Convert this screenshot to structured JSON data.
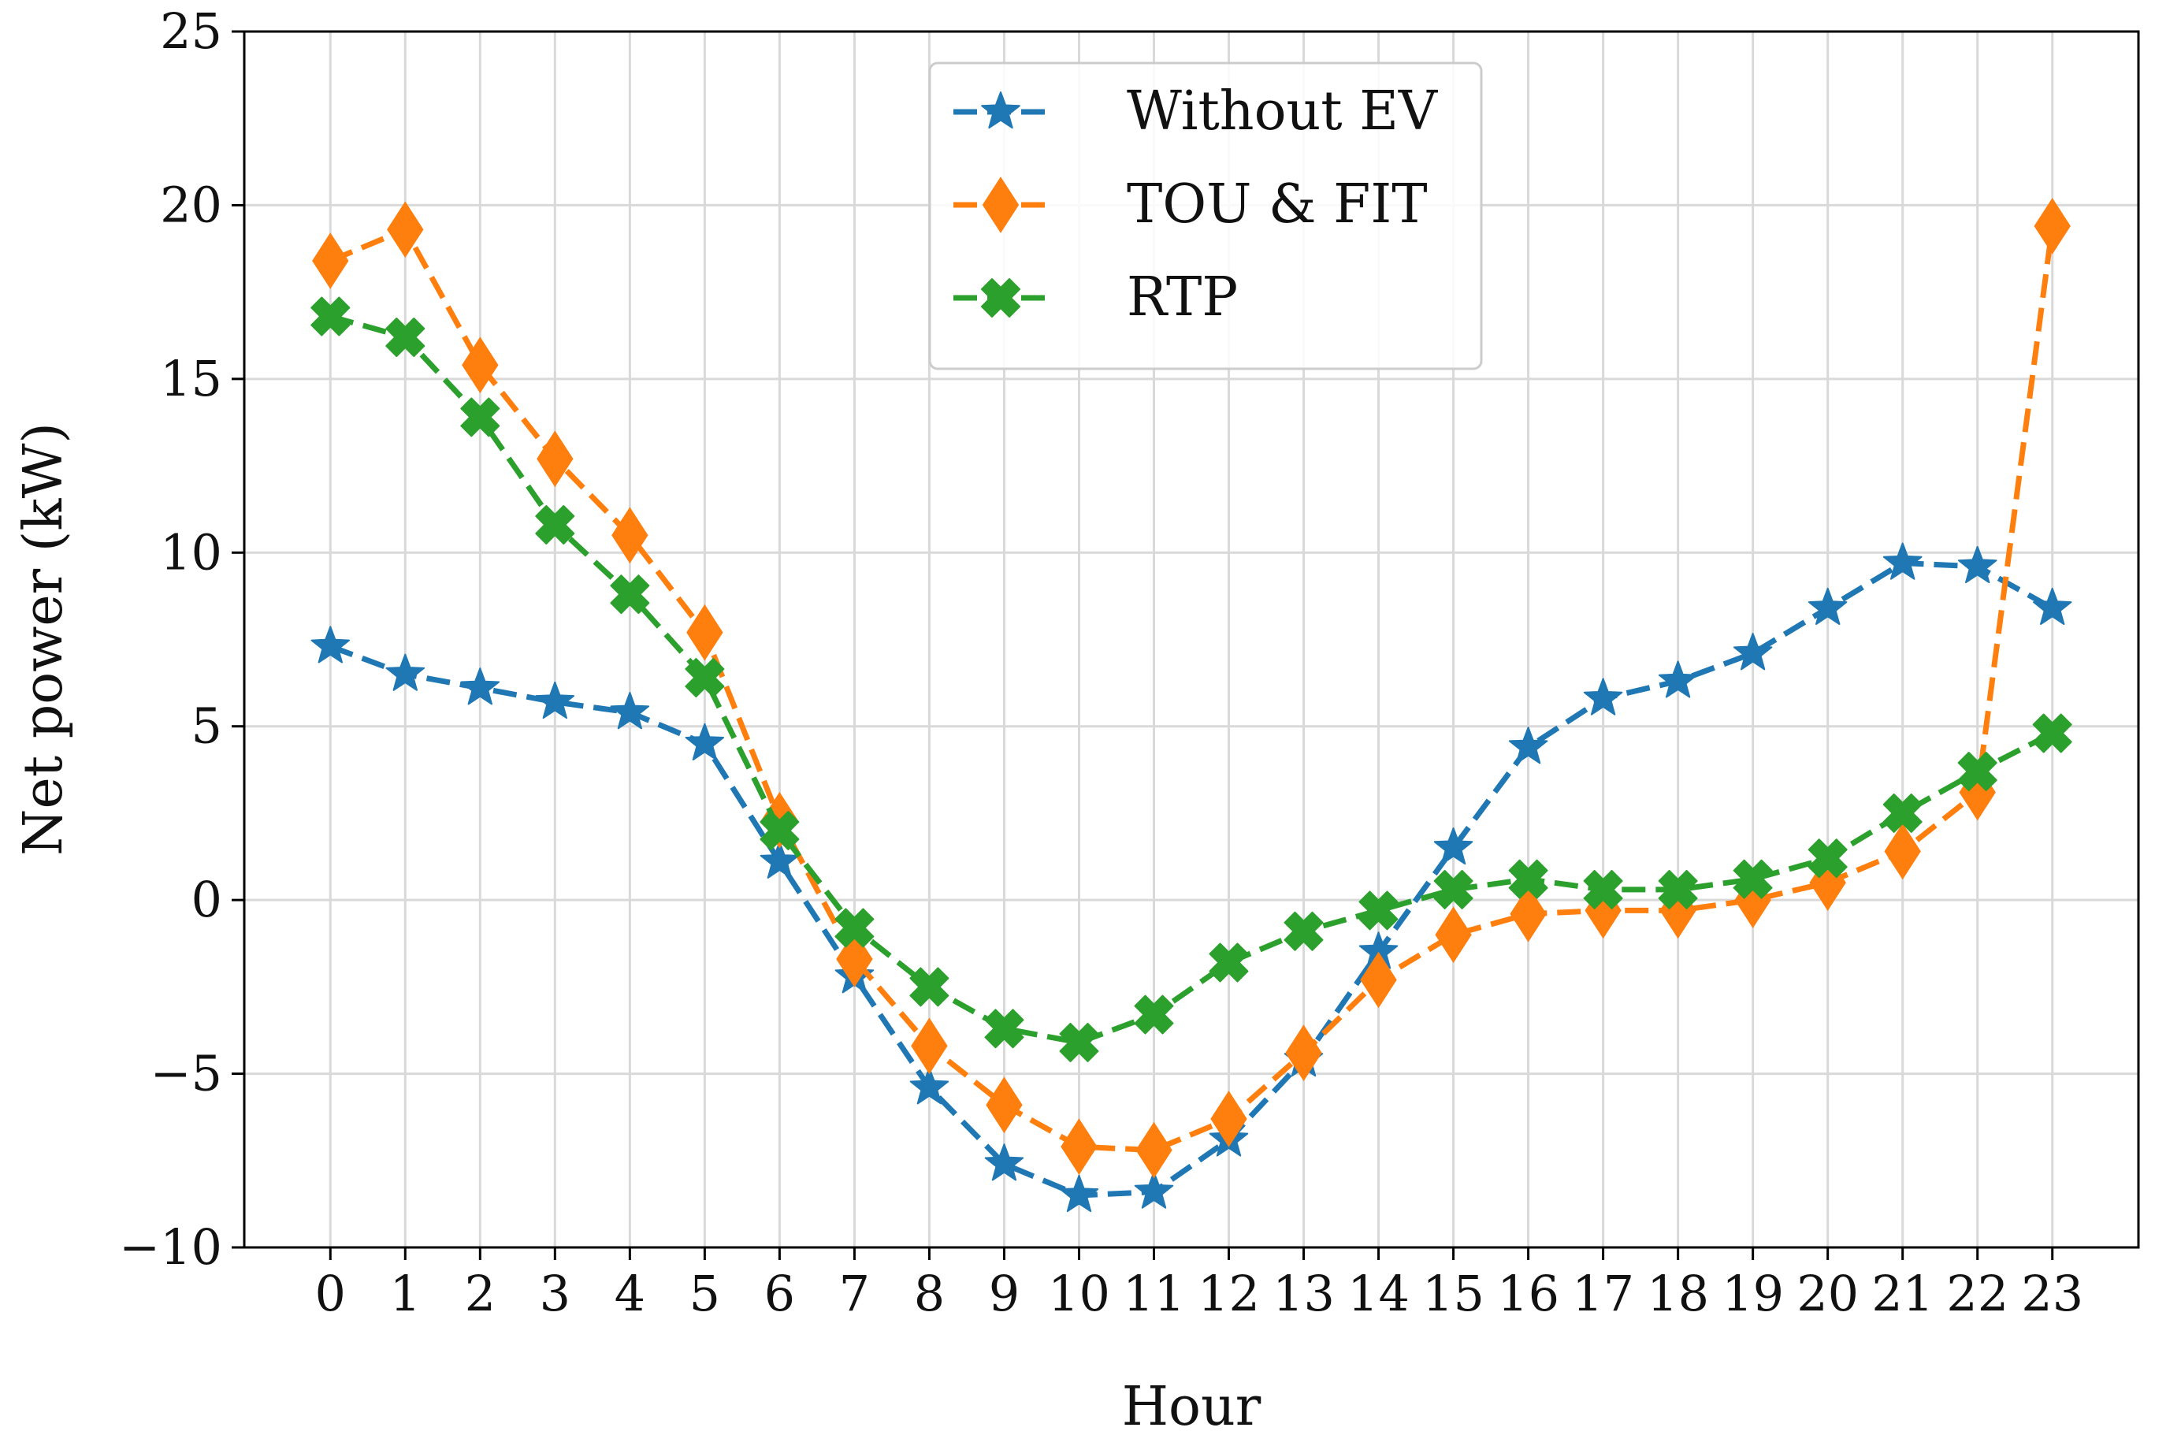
{
  "chart_data": {
    "type": "line",
    "title": "",
    "xlabel": "Hour",
    "ylabel": "Net power (kW)",
    "xlim": [
      -1.15,
      24.15
    ],
    "ylim": [
      -10,
      25
    ],
    "x": [
      0,
      1,
      2,
      3,
      4,
      5,
      6,
      7,
      8,
      9,
      10,
      11,
      12,
      13,
      14,
      15,
      16,
      17,
      18,
      19,
      20,
      21,
      22,
      23
    ],
    "x_tick_labels": [
      "0",
      "1",
      "2",
      "3",
      "4",
      "5",
      "6",
      "7",
      "8",
      "9",
      "10",
      "11",
      "12",
      "13",
      "14",
      "15",
      "16",
      "17",
      "18",
      "19",
      "20",
      "21",
      "22",
      "23"
    ],
    "y_ticks": [
      -10,
      -5,
      0,
      5,
      10,
      15,
      20,
      25
    ],
    "y_tick_labels": [
      "−10",
      "−5",
      "0",
      "5",
      "10",
      "15",
      "20",
      "25"
    ],
    "grid": true,
    "legend_position": "top-center",
    "series": [
      {
        "name": "Without EV",
        "color": "#1f77b4",
        "marker": "star",
        "linestyle": "dashed",
        "values": [
          7.3,
          6.5,
          6.1,
          5.7,
          5.4,
          4.5,
          1.1,
          -2.2,
          -5.4,
          -7.6,
          -8.5,
          -8.4,
          -6.9,
          -4.6,
          -1.5,
          1.5,
          4.4,
          5.8,
          6.3,
          7.1,
          8.4,
          9.7,
          9.6,
          8.4
        ]
      },
      {
        "name": "TOU & FIT",
        "color": "#ff7f0e",
        "marker": "diamond",
        "linestyle": "dashed",
        "values": [
          18.4,
          19.3,
          15.4,
          12.7,
          10.5,
          7.7,
          2.3,
          -1.7,
          -4.2,
          -5.9,
          -7.1,
          -7.2,
          -6.3,
          -4.4,
          -2.3,
          -1.0,
          -0.4,
          -0.3,
          -0.3,
          0.0,
          0.5,
          1.4,
          3.1,
          19.4
        ]
      },
      {
        "name": "RTP",
        "color": "#2ca02c",
        "marker": "x-filled",
        "linestyle": "dashed",
        "values": [
          16.8,
          16.2,
          13.9,
          10.8,
          8.8,
          6.4,
          2.0,
          -0.8,
          -2.5,
          -3.7,
          -4.1,
          -3.3,
          -1.8,
          -0.9,
          -0.3,
          0.3,
          0.6,
          0.3,
          0.3,
          0.6,
          1.2,
          2.5,
          3.7,
          4.8
        ]
      }
    ]
  }
}
